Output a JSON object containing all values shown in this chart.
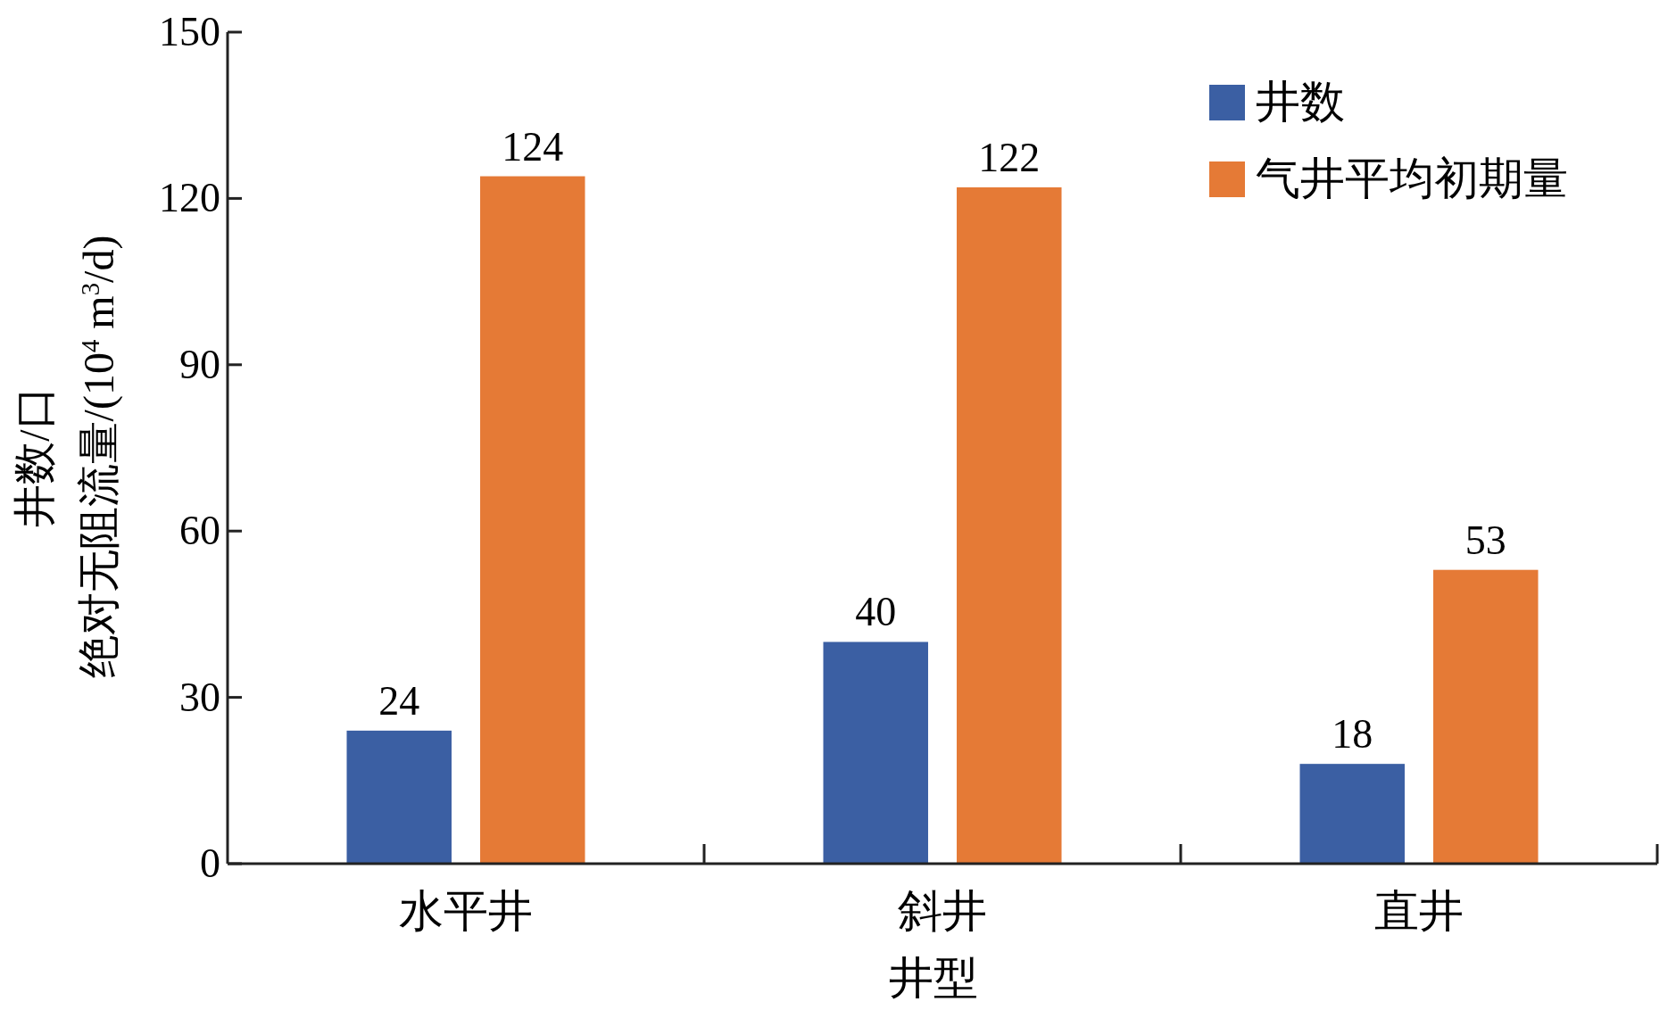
{
  "chart_data": {
    "type": "bar",
    "xlabel": "井型",
    "ylabel": [
      "井数/口",
      "绝对无阻流量/(10$^{4}$ m$^{3}$/d)"
    ],
    "categories": [
      "水平井",
      "斜井",
      "直井"
    ],
    "series": [
      {
        "name": "井数",
        "color": "#3b5fa3",
        "values": [
          24,
          40,
          18
        ]
      },
      {
        "name": "气井平均初期量",
        "color": "#e57a36",
        "values": [
          124,
          122,
          53
        ]
      }
    ],
    "ylim": [
      0,
      150
    ],
    "yticks": [
      0,
      30,
      60,
      90,
      120,
      150
    ],
    "data_labels": true,
    "legend": "top right",
    "grid": false
  }
}
